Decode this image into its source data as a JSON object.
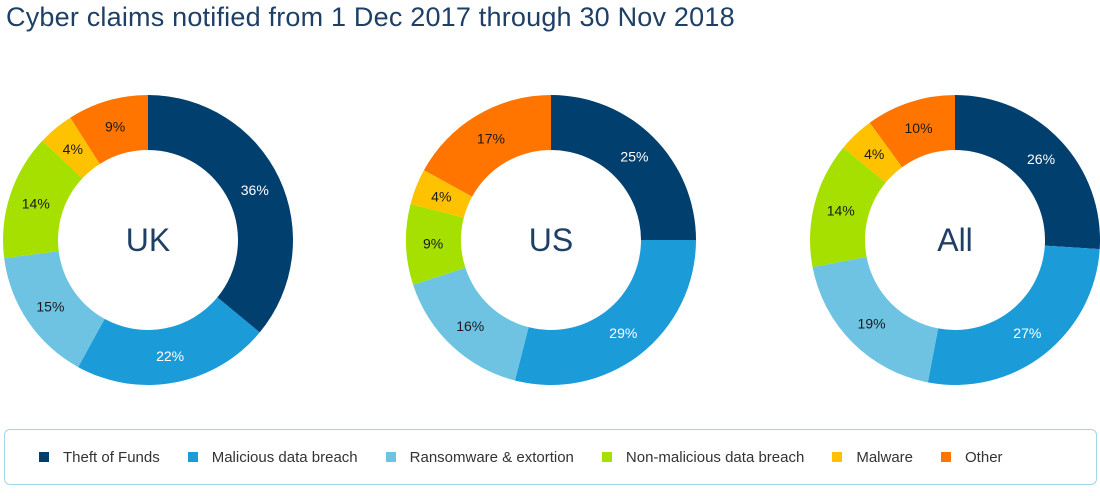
{
  "title": "Cyber claims notified from 1 Dec 2017 through 30 Nov 2018",
  "colors": {
    "title": "#1e3f66",
    "legend_border": "#a8d4ea"
  },
  "chart_data": {
    "type": "pie",
    "variant": "donut",
    "categories": [
      {
        "name": "Theft of Funds",
        "color": "#003f6e"
      },
      {
        "name": "Malicious data breach",
        "color": "#1b9bd8"
      },
      {
        "name": "Ransomware & extortion",
        "color": "#6ec3e2"
      },
      {
        "name": "Non-malicious data breach",
        "color": "#a5e000"
      },
      {
        "name": "Malware",
        "color": "#ffc200"
      },
      {
        "name": "Other",
        "color": "#ff7500"
      }
    ],
    "legend_position": "bottom",
    "charts": [
      {
        "label": "UK",
        "values": [
          36,
          22,
          15,
          14,
          4,
          9
        ]
      },
      {
        "label": "US",
        "values": [
          25,
          29,
          16,
          9,
          4,
          17
        ]
      },
      {
        "label": "All",
        "values": [
          26,
          27,
          19,
          14,
          4,
          10
        ]
      }
    ],
    "value_suffix": "%"
  }
}
